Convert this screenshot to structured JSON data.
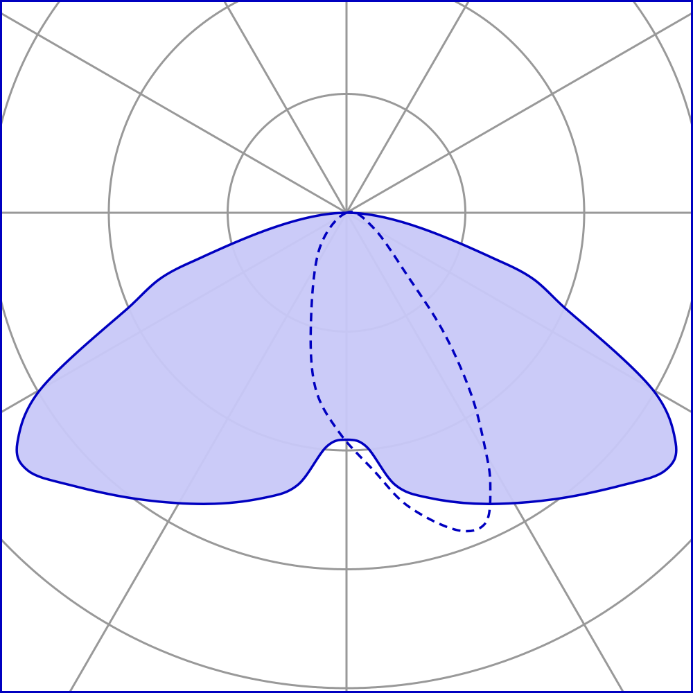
{
  "chart_data": {
    "type": "polar",
    "title": "",
    "rings": [
      1,
      2,
      3,
      4
    ],
    "radial_line_step_deg": 30,
    "grid": true,
    "colors": {
      "grid": "#999999",
      "series": "#0000c0",
      "fill": "#c8c8f8",
      "frame": "#0000c0"
    },
    "series": [
      {
        "style": "solid-filled",
        "points": [
          [
            0,
            0
          ],
          [
            -1.34,
            0.43
          ],
          [
            -1.87,
            0.83
          ],
          [
            -2.57,
            1.48
          ],
          [
            -2.77,
            1.94
          ],
          [
            -2.68,
            2.17
          ],
          [
            -2.33,
            2.29
          ],
          [
            -1.75,
            2.41
          ],
          [
            -1.17,
            2.45
          ],
          [
            -0.7,
            2.4
          ],
          [
            -0.41,
            2.29
          ],
          [
            -0.17,
            1.97
          ],
          [
            0,
            1.91
          ],
          [
            0.17,
            1.97
          ],
          [
            0.41,
            2.29
          ],
          [
            0.7,
            2.4
          ],
          [
            1.17,
            2.45
          ],
          [
            1.75,
            2.41
          ],
          [
            2.33,
            2.29
          ],
          [
            2.68,
            2.17
          ],
          [
            2.77,
            1.94
          ],
          [
            2.57,
            1.48
          ],
          [
            1.87,
            0.83
          ],
          [
            1.34,
            0.43
          ]
        ]
      },
      {
        "style": "dashed",
        "points": [
          [
            0,
            0
          ],
          [
            -0.23,
            0.31
          ],
          [
            -0.3,
            0.95
          ],
          [
            -0.26,
            1.48
          ],
          [
            -0.06,
            1.85
          ],
          [
            0.23,
            2.17
          ],
          [
            0.52,
            2.47
          ],
          [
            0.93,
            2.67
          ],
          [
            1.17,
            2.61
          ],
          [
            1.21,
            2.29
          ],
          [
            1.17,
            2.0
          ],
          [
            1.05,
            1.53
          ],
          [
            0.82,
            1.01
          ],
          [
            0.52,
            0.54
          ],
          [
            0.23,
            0.13
          ]
        ]
      }
    ]
  }
}
